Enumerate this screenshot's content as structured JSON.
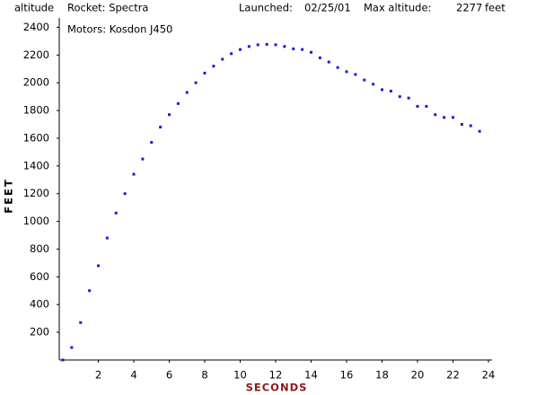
{
  "chart_data": {
    "type": "scatter",
    "title": "Rocket: Spectra",
    "subtitle": "Motors: Kosdon J450",
    "annotations": [
      "altitude",
      "Launched:",
      "02/25/01",
      "Max altitude:",
      "2277",
      "feet"
    ],
    "xlabel": "SECONDS",
    "ylabel": "FEET",
    "color": "#1c1cd8",
    "x": [
      0,
      0.5,
      1,
      1.5,
      2,
      2.5,
      3,
      3.5,
      4,
      4.5,
      5,
      5.5,
      6,
      6.5,
      7,
      7.5,
      8,
      8.5,
      9,
      9.5,
      10,
      10.5,
      11,
      11.5,
      12,
      12.5,
      13,
      13.5,
      14,
      14.5,
      15,
      15.5,
      16,
      16.5,
      17,
      17.5,
      18,
      18.5,
      19,
      19.5,
      20,
      20.5,
      21,
      21.5,
      22,
      22.5,
      23,
      23.5
    ],
    "values": [
      0,
      90,
      270,
      500,
      680,
      880,
      1060,
      1200,
      1340,
      1450,
      1570,
      1680,
      1770,
      1850,
      1930,
      2000,
      2070,
      2120,
      2170,
      2210,
      2240,
      2262,
      2274,
      2277,
      2274,
      2262,
      2245,
      2240,
      2220,
      2180,
      2150,
      2110,
      2080,
      2060,
      2020,
      1990,
      1950,
      1940,
      1900,
      1890,
      1830,
      1830,
      1770,
      1750,
      1750,
      1700,
      1690,
      1650
    ],
    "xlim": [
      0,
      24
    ],
    "ylim": [
      0,
      2500
    ],
    "xticks": [
      2,
      4,
      6,
      8,
      10,
      12,
      14,
      16,
      18,
      20,
      22,
      24
    ],
    "yticks": [
      200,
      400,
      600,
      800,
      1000,
      1200,
      1400,
      1600,
      1800,
      2000,
      2200,
      2400
    ]
  }
}
